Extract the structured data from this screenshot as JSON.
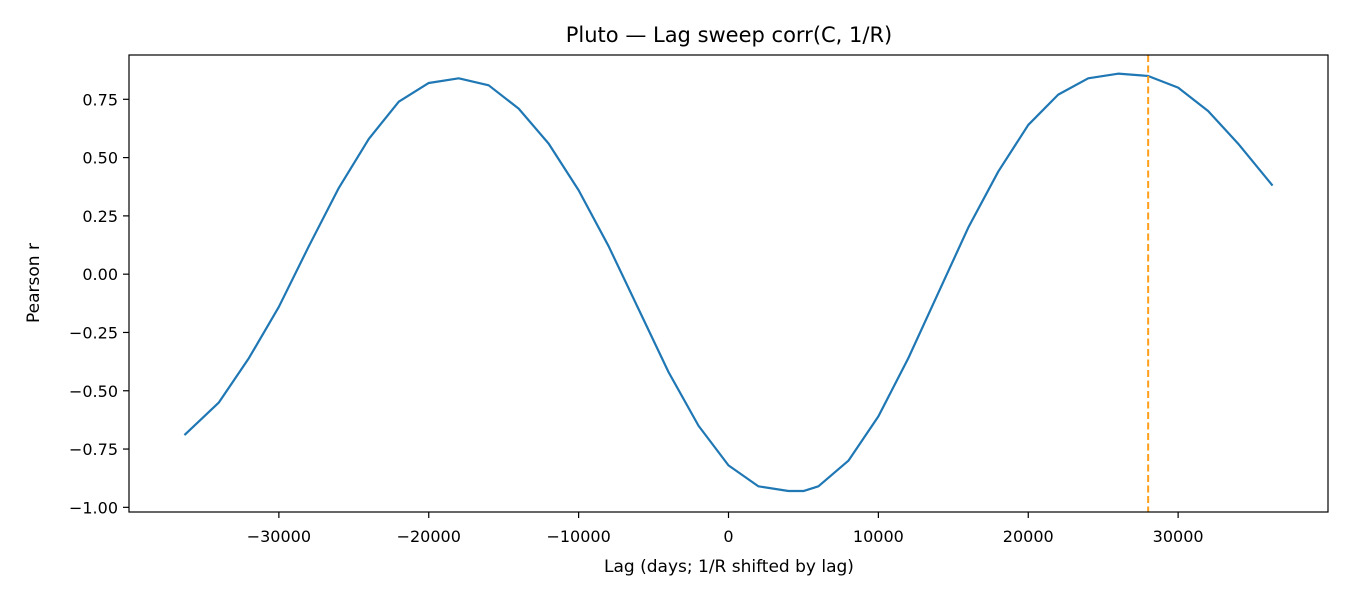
{
  "chart_data": {
    "type": "line",
    "title": "Pluto — Lag sweep corr(C, 1/R)",
    "xlabel": "Lag (days; 1/R shifted by lag)",
    "ylabel": "Pearson r",
    "xlim": [
      -40000,
      40000
    ],
    "ylim": [
      -1.02,
      0.94
    ],
    "xticks": [
      -30000,
      -20000,
      -10000,
      0,
      10000,
      20000,
      30000
    ],
    "xtick_labels": [
      "−30000",
      "−20000",
      "−10000",
      "0",
      "10000",
      "20000",
      "30000"
    ],
    "yticks": [
      0.75,
      0.5,
      0.25,
      0.0,
      -0.25,
      -0.5,
      -0.75,
      -1.0
    ],
    "ytick_labels": [
      "0.75",
      "0.50",
      "0.25",
      "0.00",
      "−0.25",
      "−0.50",
      "−0.75",
      "−1.00"
    ],
    "grid": false,
    "series": [
      {
        "color": "#1f77b4",
        "x": [
          -36300,
          -34000,
          -32000,
          -30000,
          -28000,
          -26000,
          -24000,
          -22000,
          -20000,
          -18000,
          -16000,
          -14000,
          -12000,
          -10000,
          -8000,
          -6000,
          -4000,
          -2000,
          0,
          2000,
          4000,
          5000,
          6000,
          8000,
          10000,
          12000,
          14000,
          16000,
          18000,
          20000,
          22000,
          24000,
          26000,
          28000,
          30000,
          32000,
          34000,
          36300
        ],
        "y": [
          -0.69,
          -0.55,
          -0.36,
          -0.14,
          0.12,
          0.37,
          0.58,
          0.74,
          0.82,
          0.84,
          0.81,
          0.71,
          0.56,
          0.36,
          0.12,
          -0.15,
          -0.42,
          -0.65,
          -0.82,
          -0.91,
          -0.93,
          -0.93,
          -0.91,
          -0.8,
          -0.61,
          -0.36,
          -0.08,
          0.2,
          0.44,
          0.64,
          0.77,
          0.84,
          0.86,
          0.85,
          0.8,
          0.7,
          0.56,
          0.38
        ]
      }
    ],
    "vlines": [
      {
        "x": 28000,
        "color": "#ff9f1c",
        "style": "dashed"
      }
    ]
  }
}
